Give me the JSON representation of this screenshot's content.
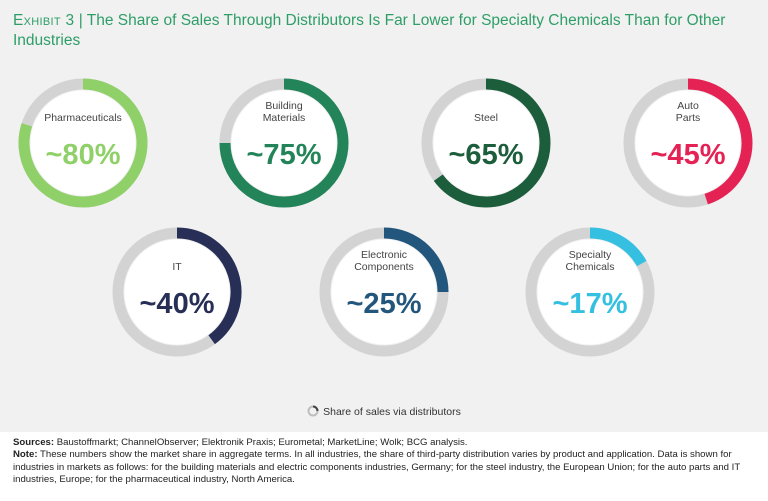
{
  "title": {
    "prefix": "Exhibit 3",
    "separator": "|",
    "text": "The Share of Sales Through Distributors Is Far Lower for Specialty Chemicals Than for Other Industries"
  },
  "chart_data": {
    "type": "donut",
    "title": "The Share of Sales Through Distributors Is Far Lower for Specialty Chemicals Than for Other Industries",
    "legend": "Share of sales via distributors",
    "series": [
      {
        "name": "Pharmaceuticals",
        "value": 80,
        "display": "~80%",
        "color": "#8fd069",
        "label_color": "#8fd069"
      },
      {
        "name": "Building Materials",
        "value": 75,
        "display": "~75%",
        "color": "#238359",
        "label_color": "#238359"
      },
      {
        "name": "Steel",
        "value": 65,
        "display": "~65%",
        "color": "#1c5d3b",
        "label_color": "#1c5d3b"
      },
      {
        "name": "Auto Parts",
        "value": 45,
        "display": "~45%",
        "color": "#e42254",
        "label_color": "#e42254"
      },
      {
        "name": "IT",
        "value": 40,
        "display": "~40%",
        "color": "#282f57",
        "label_color": "#282f57"
      },
      {
        "name": "Electronic Components",
        "value": 25,
        "display": "~25%",
        "color": "#23567c",
        "label_color": "#23567c"
      },
      {
        "name": "Specialty Chemicals",
        "value": 17,
        "display": "~17%",
        "color": "#35c0e1",
        "label_color": "#35c0e1"
      }
    ],
    "track_color": "#d3d3d3"
  },
  "footer": {
    "sources_label": "Sources:",
    "sources_text": "Baustoffmarkt; ChannelObserver; Elektronik Praxis; Eurometal; MarketLine; Wolk; BCG analysis.",
    "note_label": "Note:",
    "note_text": "These numbers show the market share in aggregate terms. In all industries, the share of third-party distribution varies by product and application. Data is shown for industries in markets as follows: for the building materials and electric components industries, Germany; for the steel industry, the European Union; for the auto parts and IT industries, Europe; for the pharmaceutical industry, North America."
  }
}
